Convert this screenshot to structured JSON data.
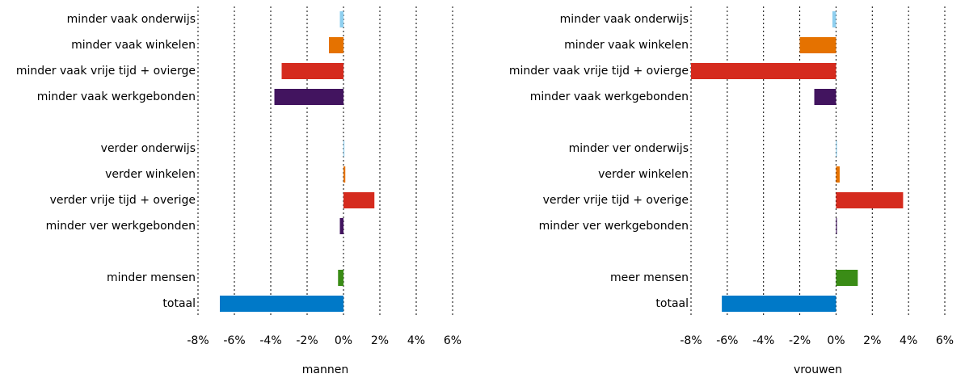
{
  "chart_data": [
    {
      "type": "bar",
      "orientation": "horizontal",
      "xlabel": "mannen",
      "categories": [
        "minder vaak onderwijs",
        "minder vaak winkelen",
        "minder vaak vrije tijd + ovierge",
        "minder vaak werkgebonden",
        null,
        "verder onderwijs",
        "verder winkelen",
        "verder vrije tijd + overige",
        "minder ver werkgebonden",
        null,
        "minder mensen",
        "totaal"
      ],
      "values": [
        -0.2,
        -0.8,
        -3.4,
        -3.8,
        null,
        0.05,
        0.1,
        1.7,
        -0.2,
        null,
        -0.3,
        -6.8
      ],
      "colors": [
        "#8ecfef",
        "#e57200",
        "#d52b1e",
        "#42145f",
        null,
        "#8ecfef",
        "#e57200",
        "#d52b1e",
        "#42145f",
        null,
        "#3a8c16",
        "#0079c8"
      ],
      "xlim": [
        -8,
        6
      ],
      "xticks": [
        {
          "value": -8,
          "label": "-8%"
        },
        {
          "value": -6,
          "label": "-6%"
        },
        {
          "value": -4,
          "label": "-4%"
        },
        {
          "value": -2,
          "label": "-2%"
        },
        {
          "value": 0,
          "label": "0%"
        },
        {
          "value": 2,
          "label": "2%"
        },
        {
          "value": 4,
          "label": "4%"
        },
        {
          "value": 6,
          "label": "6%"
        }
      ],
      "grid": true
    },
    {
      "type": "bar",
      "orientation": "horizontal",
      "xlabel": "vrouwen",
      "categories": [
        "minder vaak onderwijs",
        "minder vaak winkelen",
        "minder vaak vrije tijd + ovierge",
        "minder vaak werkgebonden",
        null,
        "minder ver onderwijs",
        "verder winkelen",
        "verder vrije tijd + overige",
        "minder ver werkgebonden",
        null,
        "meer mensen",
        "totaal"
      ],
      "values": [
        -0.2,
        -2.0,
        -8.0,
        -1.2,
        null,
        0.05,
        0.2,
        3.7,
        0.05,
        null,
        1.2,
        -6.3
      ],
      "colors": [
        "#8ecfef",
        "#e57200",
        "#d52b1e",
        "#42145f",
        null,
        "#8ecfef",
        "#e57200",
        "#d52b1e",
        "#42145f",
        null,
        "#3a8c16",
        "#0079c8"
      ],
      "xlim": [
        -8,
        6
      ],
      "xticks": [
        {
          "value": -8,
          "label": "-8%"
        },
        {
          "value": -6,
          "label": "-6%"
        },
        {
          "value": -4,
          "label": "-4%"
        },
        {
          "value": -2,
          "label": "-2%"
        },
        {
          "value": 0,
          "label": "0%"
        },
        {
          "value": 2,
          "label": "2%"
        },
        {
          "value": 4,
          "label": "4%"
        },
        {
          "value": 6,
          "label": "6%"
        }
      ],
      "grid": true
    }
  ]
}
